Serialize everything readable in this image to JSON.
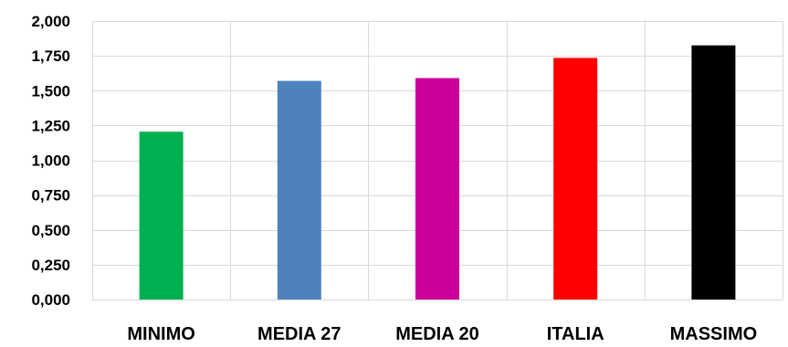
{
  "chart_data": {
    "type": "bar",
    "categories": [
      "MINIMO",
      "MEDIA 27",
      "MEDIA 20",
      "ITALIA",
      "MASSIMO"
    ],
    "values": [
      1.205,
      1.57,
      1.59,
      1.735,
      1.825
    ],
    "colors": [
      "#00b050",
      "#4f81bd",
      "#cc0099",
      "#ff0000",
      "#000000"
    ],
    "ylim": [
      0,
      2
    ],
    "yticks": [
      0,
      0.25,
      0.5,
      0.75,
      1,
      1.25,
      1.5,
      1.75,
      2
    ],
    "ytick_labels": [
      "0,000",
      "0,250",
      "0,500",
      "0,750",
      "1,000",
      "1,250",
      "1,500",
      "1,750",
      "2,000"
    ],
    "grid": true,
    "legend": "none",
    "title": "",
    "xlabel": "",
    "ylabel": ""
  }
}
